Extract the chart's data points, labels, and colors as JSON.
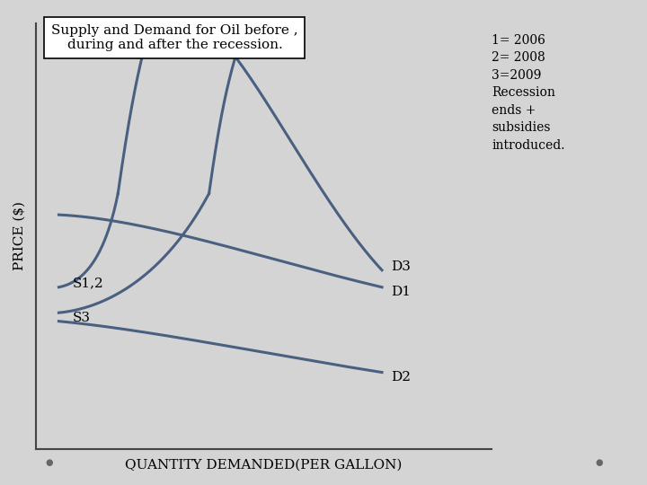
{
  "title": "Supply and Demand for Oil before ,\nduring and after the recession.",
  "xlabel": "QUANTITY DEMANDED(PER GALLON)",
  "ylabel": "PRICE ($)",
  "legend_text": "1= 2006\n2= 2008\n3=2009\nRecession\nends +\nsubsidies\nintroduced.",
  "curve_color": "#4a6080",
  "background_color": "#d4d4d4",
  "axes_color": "#444444",
  "plot_xlim": [
    0,
    1
  ],
  "plot_ylim": [
    0,
    1
  ],
  "lw": 2.2,
  "label_fontsize": 11,
  "title_fontsize": 11,
  "legend_fontsize": 10
}
